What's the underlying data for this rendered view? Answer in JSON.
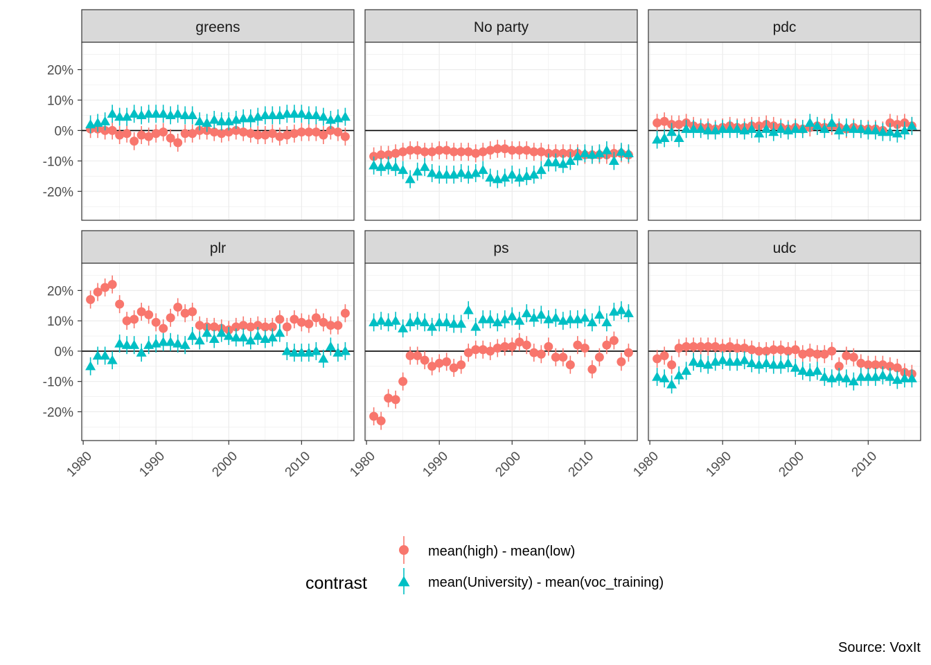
{
  "chart_data": {
    "type": "scatter",
    "facets": [
      "greens",
      "No party",
      "pdc",
      "plr",
      "ps",
      "udc"
    ],
    "x": [
      1981,
      1982,
      1983,
      1984,
      1985,
      1986,
      1987,
      1988,
      1989,
      1990,
      1991,
      1992,
      1993,
      1994,
      1995,
      1996,
      1997,
      1998,
      1999,
      2000,
      2001,
      2002,
      2003,
      2004,
      2005,
      2006,
      2007,
      2008,
      2009,
      2010,
      2011,
      2012,
      2013,
      2014,
      2015,
      2016
    ],
    "x_ticks": [
      1980,
      1990,
      2000,
      2010
    ],
    "x_tick_labels": [
      "1980",
      "1990",
      "2000",
      "2010"
    ],
    "xlim": [
      1979.8,
      2017.2
    ],
    "y_ticks": [
      -0.2,
      -0.1,
      0,
      0.1,
      0.2
    ],
    "y_tick_labels": [
      "-20%",
      "-10%",
      "0%",
      "10%",
      "20%"
    ],
    "ylim": [
      -0.295,
      0.29
    ],
    "reference_line": 0,
    "grid": true,
    "error_bars": true,
    "legend": {
      "title": "contrast",
      "position": "bottom",
      "entries": [
        {
          "label": "mean(high) - mean(low)",
          "shape": "circle",
          "color": "#F8766D"
        },
        {
          "label": "mean(University) - mean(voc_training)",
          "shape": "triangle",
          "color": "#00BFC4"
        }
      ]
    },
    "caption": "Source: VoxIt",
    "series": [
      {
        "name": "mean(high) - mean(low)",
        "shape": "circle",
        "color": "#F8766D",
        "values": {
          "greens": [
            0.005,
            0.005,
            0.0,
            0.0,
            -0.015,
            -0.01,
            -0.035,
            -0.015,
            -0.02,
            -0.01,
            -0.005,
            -0.025,
            -0.04,
            -0.01,
            -0.01,
            0.0,
            0.0,
            -0.005,
            -0.01,
            -0.005,
            0.0,
            -0.005,
            -0.01,
            -0.015,
            -0.015,
            -0.01,
            -0.02,
            -0.015,
            -0.01,
            -0.005,
            -0.005,
            -0.005,
            -0.015,
            0.0,
            -0.005,
            -0.02
          ],
          "No party": [
            -0.085,
            -0.08,
            -0.08,
            -0.075,
            -0.07,
            -0.065,
            -0.065,
            -0.07,
            -0.07,
            -0.065,
            -0.065,
            -0.07,
            -0.07,
            -0.07,
            -0.075,
            -0.07,
            -0.065,
            -0.06,
            -0.06,
            -0.065,
            -0.065,
            -0.065,
            -0.07,
            -0.07,
            -0.075,
            -0.075,
            -0.075,
            -0.075,
            -0.075,
            -0.08,
            -0.08,
            -0.08,
            -0.08,
            -0.075,
            -0.075,
            -0.08
          ],
          "pdc": [
            0.025,
            0.03,
            0.02,
            0.02,
            0.025,
            0.015,
            0.01,
            0.01,
            0.005,
            0.01,
            0.015,
            0.01,
            0.01,
            0.015,
            0.015,
            0.02,
            0.015,
            0.01,
            0.005,
            0.01,
            0.005,
            0.01,
            0.015,
            0.01,
            0.015,
            0.01,
            0.005,
            0.01,
            0.005,
            0.005,
            0.005,
            0.0,
            0.025,
            0.02,
            0.025,
            0.015
          ],
          "plr": [
            0.17,
            0.195,
            0.21,
            0.22,
            0.155,
            0.1,
            0.105,
            0.13,
            0.12,
            0.095,
            0.075,
            0.11,
            0.145,
            0.125,
            0.13,
            0.085,
            0.08,
            0.08,
            0.075,
            0.07,
            0.08,
            0.085,
            0.08,
            0.085,
            0.08,
            0.08,
            0.105,
            0.08,
            0.105,
            0.095,
            0.09,
            0.11,
            0.095,
            0.085,
            0.085,
            0.125
          ],
          "ps": [
            -0.215,
            -0.23,
            -0.155,
            -0.16,
            -0.1,
            -0.015,
            -0.015,
            -0.03,
            -0.05,
            -0.04,
            -0.035,
            -0.055,
            -0.045,
            -0.005,
            0.005,
            0.005,
            0.0,
            0.01,
            0.015,
            0.015,
            0.03,
            0.02,
            -0.005,
            -0.01,
            0.015,
            -0.02,
            -0.02,
            -0.045,
            0.02,
            0.01,
            -0.06,
            -0.02,
            0.02,
            0.035,
            -0.035,
            -0.005
          ],
          "udc": [
            -0.025,
            -0.015,
            -0.045,
            0.01,
            0.015,
            0.015,
            0.015,
            0.015,
            0.015,
            0.01,
            0.015,
            0.01,
            0.01,
            0.005,
            0.0,
            0.0,
            0.005,
            0.005,
            0.0,
            0.005,
            -0.01,
            -0.005,
            -0.01,
            -0.01,
            0.0,
            -0.05,
            -0.015,
            -0.02,
            -0.04,
            -0.045,
            -0.045,
            -0.045,
            -0.05,
            -0.055,
            -0.07,
            -0.075
          ]
        }
      },
      {
        "name": "mean(University) - mean(voc_training)",
        "shape": "triangle",
        "color": "#00BFC4",
        "values": {
          "greens": [
            0.02,
            0.025,
            0.03,
            0.055,
            0.045,
            0.045,
            0.055,
            0.05,
            0.055,
            0.055,
            0.055,
            0.05,
            0.055,
            0.05,
            0.05,
            0.03,
            0.025,
            0.035,
            0.03,
            0.03,
            0.035,
            0.04,
            0.04,
            0.045,
            0.05,
            0.05,
            0.05,
            0.055,
            0.055,
            0.055,
            0.05,
            0.05,
            0.045,
            0.035,
            0.04,
            0.045
          ],
          "No party": [
            -0.115,
            -0.12,
            -0.115,
            -0.12,
            -0.13,
            -0.16,
            -0.135,
            -0.12,
            -0.14,
            -0.145,
            -0.145,
            -0.145,
            -0.14,
            -0.145,
            -0.14,
            -0.13,
            -0.155,
            -0.16,
            -0.155,
            -0.145,
            -0.155,
            -0.15,
            -0.145,
            -0.13,
            -0.105,
            -0.105,
            -0.11,
            -0.1,
            -0.085,
            -0.075,
            -0.08,
            -0.075,
            -0.065,
            -0.1,
            -0.07,
            -0.075
          ],
          "pdc": [
            -0.03,
            -0.025,
            -0.005,
            -0.025,
            0.005,
            0.005,
            0.005,
            0.0,
            0.0,
            0.005,
            0.005,
            0.005,
            0.0,
            0.005,
            -0.01,
            0.005,
            -0.005,
            0.005,
            0.0,
            0.005,
            0.005,
            0.025,
            0.015,
            0.005,
            0.025,
            0.0,
            0.01,
            0.005,
            0.005,
            0.0,
            0.0,
            -0.005,
            -0.005,
            -0.01,
            0.0,
            0.015
          ],
          "plr": [
            -0.05,
            -0.015,
            -0.015,
            -0.03,
            0.025,
            0.02,
            0.02,
            -0.005,
            0.02,
            0.025,
            0.03,
            0.03,
            0.025,
            0.02,
            0.05,
            0.035,
            0.06,
            0.04,
            0.06,
            0.05,
            0.045,
            0.045,
            0.035,
            0.05,
            0.04,
            0.045,
            0.06,
            0.0,
            -0.005,
            -0.005,
            -0.005,
            0.0,
            -0.025,
            0.015,
            -0.005,
            0.0
          ],
          "ps": [
            0.095,
            0.1,
            0.095,
            0.1,
            0.075,
            0.095,
            0.1,
            0.095,
            0.08,
            0.095,
            0.095,
            0.09,
            0.09,
            0.135,
            0.08,
            0.105,
            0.105,
            0.095,
            0.105,
            0.115,
            0.1,
            0.125,
            0.11,
            0.12,
            0.105,
            0.11,
            0.1,
            0.105,
            0.105,
            0.11,
            0.095,
            0.12,
            0.095,
            0.13,
            0.135,
            0.125
          ],
          "udc": [
            -0.085,
            -0.09,
            -0.11,
            -0.08,
            -0.065,
            -0.035,
            -0.04,
            -0.045,
            -0.035,
            -0.03,
            -0.035,
            -0.035,
            -0.03,
            -0.04,
            -0.045,
            -0.04,
            -0.045,
            -0.045,
            -0.04,
            -0.055,
            -0.065,
            -0.07,
            -0.065,
            -0.085,
            -0.09,
            -0.085,
            -0.09,
            -0.1,
            -0.085,
            -0.085,
            -0.085,
            -0.08,
            -0.085,
            -0.095,
            -0.09,
            -0.09
          ]
        }
      }
    ]
  }
}
